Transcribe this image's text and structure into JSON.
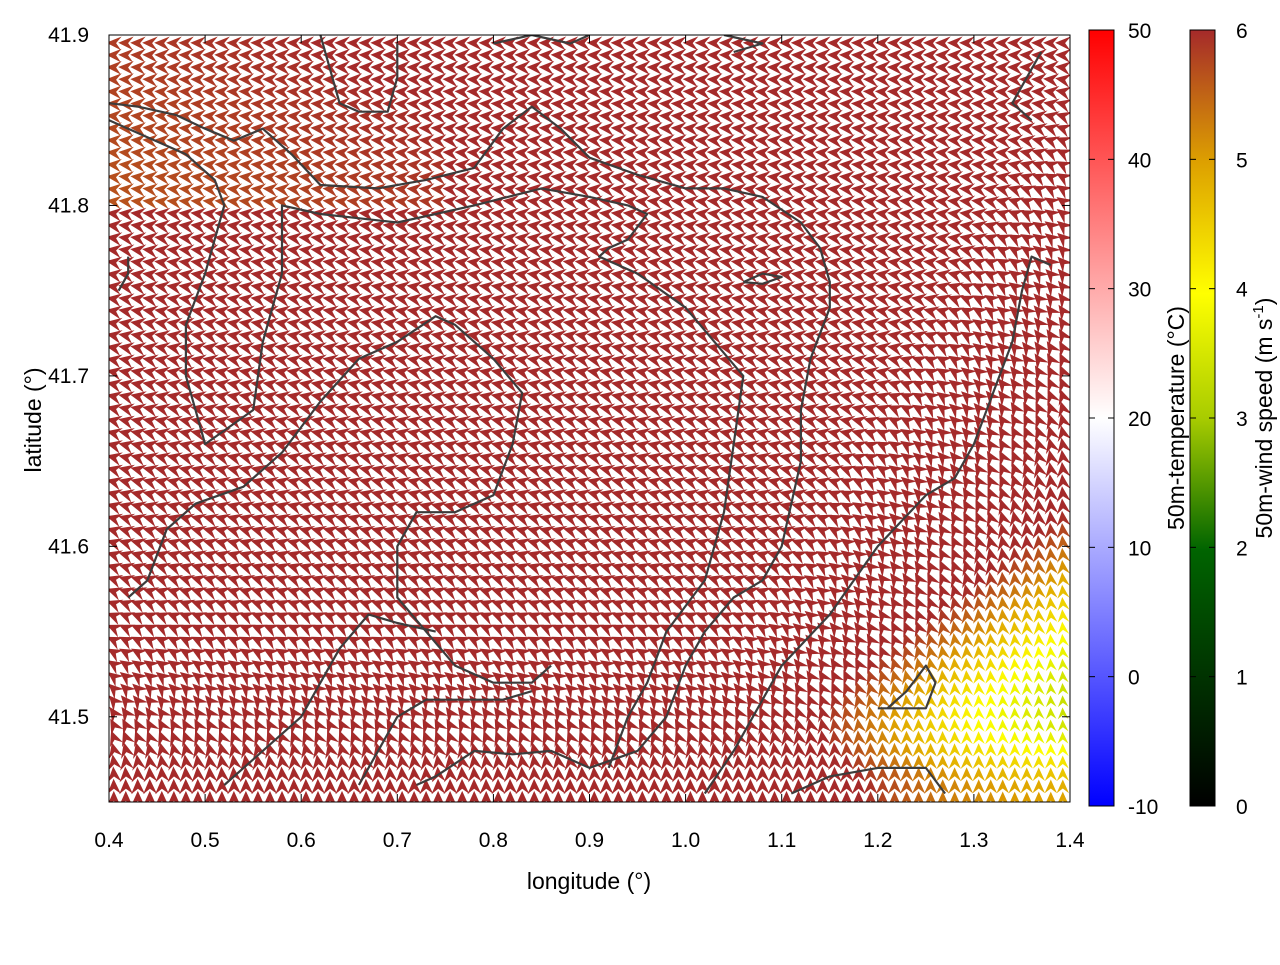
{
  "chart_data": {
    "type": "vector-field",
    "xlabel": "longitude (°)",
    "ylabel": "latitude (°)",
    "xlim": [
      0.4,
      1.4
    ],
    "ylim": [
      41.45,
      41.9
    ],
    "x_ticks": [
      "0.4",
      "0.5",
      "0.6",
      "0.7",
      "0.8",
      "0.9",
      "1.0",
      "1.1",
      "1.2",
      "1.3",
      "1.4"
    ],
    "x_tick_values": [
      0.4,
      0.5,
      0.6,
      0.7,
      0.8,
      0.9,
      1.0,
      1.1,
      1.2,
      1.3,
      1.4
    ],
    "y_ticks": [
      "41.5",
      "41.6",
      "41.7",
      "41.8",
      "41.9"
    ],
    "y_tick_values": [
      41.5,
      41.6,
      41.7,
      41.8,
      41.9
    ],
    "grid": false,
    "temperature_colorbar": {
      "label": "50m-temperature (°C)",
      "range": [
        -10,
        50
      ],
      "ticks": [
        "-10",
        "0",
        "10",
        "20",
        "30",
        "40",
        "50"
      ],
      "tick_values": [
        -10,
        0,
        10,
        20,
        30,
        40,
        50
      ],
      "colors": [
        "#0000ff",
        "#ffffff",
        "#ff0000"
      ]
    },
    "wind_colorbar": {
      "label_main": "50m-wind speed (m s",
      "label_sup": "-1",
      "label_end": ")",
      "range": [
        0,
        6
      ],
      "ticks": [
        "0",
        "1",
        "2",
        "3",
        "4",
        "5",
        "6"
      ],
      "tick_values": [
        0,
        1,
        2,
        3,
        4,
        5,
        6
      ],
      "colors": [
        "#000000",
        "#006400",
        "#a8cc00",
        "#ffff00",
        "#dda000",
        "#a52a2a"
      ]
    },
    "coastline_color": "#3c3c3c",
    "coastlines": [
      [
        [
          0.62,
          41.9
        ],
        [
          0.64,
          41.86
        ],
        [
          0.66,
          41.855
        ],
        [
          0.69,
          41.855
        ],
        [
          0.7,
          41.875
        ],
        [
          0.7,
          41.895
        ]
      ],
      [
        [
          0.4,
          41.86
        ],
        [
          0.43,
          41.858
        ],
        [
          0.47,
          41.853
        ],
        [
          0.5,
          41.845
        ],
        [
          0.53,
          41.838
        ],
        [
          0.56,
          41.845
        ],
        [
          0.59,
          41.83
        ],
        [
          0.62,
          41.812
        ],
        [
          0.68,
          41.81
        ],
        [
          0.73,
          41.815
        ],
        [
          0.78,
          41.822
        ],
        [
          0.81,
          41.845
        ],
        [
          0.84,
          41.858
        ],
        [
          0.87,
          41.845
        ],
        [
          0.9,
          41.828
        ],
        [
          0.95,
          41.818
        ],
        [
          1.0,
          41.81
        ],
        [
          1.04,
          41.81
        ],
        [
          1.08,
          41.805
        ],
        [
          1.12,
          41.79
        ],
        [
          1.14,
          41.775
        ],
        [
          1.15,
          41.755
        ],
        [
          1.15,
          41.74
        ],
        [
          1.13,
          41.71
        ],
        [
          1.12,
          41.68
        ],
        [
          1.12,
          41.65
        ],
        [
          1.1,
          41.6
        ],
        [
          1.08,
          41.58
        ],
        [
          1.05,
          41.57
        ],
        [
          1.02,
          41.55
        ],
        [
          1.0,
          41.53
        ],
        [
          0.98,
          41.5
        ],
        [
          0.95,
          41.48
        ],
        [
          0.9,
          41.47
        ],
        [
          0.86,
          41.48
        ],
        [
          0.82,
          41.478
        ],
        [
          0.78,
          41.48
        ],
        [
          0.74,
          41.465
        ],
        [
          0.72,
          41.46
        ]
      ],
      [
        [
          0.4,
          41.85
        ],
        [
          0.44,
          41.84
        ],
        [
          0.48,
          41.83
        ],
        [
          0.51,
          41.815
        ],
        [
          0.52,
          41.8
        ],
        [
          0.5,
          41.76
        ],
        [
          0.48,
          41.73
        ],
        [
          0.48,
          41.7
        ],
        [
          0.5,
          41.66
        ],
        [
          0.55,
          41.68
        ],
        [
          0.56,
          41.72
        ],
        [
          0.58,
          41.76
        ],
        [
          0.58,
          41.8
        ],
        [
          0.62,
          41.795
        ],
        [
          0.7,
          41.79
        ],
        [
          0.78,
          41.8
        ],
        [
          0.85,
          41.81
        ],
        [
          0.9,
          41.805
        ],
        [
          0.94,
          41.8
        ],
        [
          0.96,
          41.795
        ],
        [
          0.94,
          41.78
        ],
        [
          0.92,
          41.775
        ],
        [
          0.91,
          41.77
        ],
        [
          0.95,
          41.76
        ],
        [
          1.0,
          41.74
        ],
        [
          1.03,
          41.72
        ],
        [
          1.06,
          41.7
        ],
        [
          1.05,
          41.66
        ],
        [
          1.04,
          41.62
        ],
        [
          1.02,
          41.58
        ],
        [
          0.98,
          41.55
        ],
        [
          0.96,
          41.52
        ],
        [
          0.94,
          41.5
        ],
        [
          0.92,
          41.47
        ]
      ],
      [
        [
          0.42,
          41.57
        ],
        [
          0.44,
          41.58
        ],
        [
          0.46,
          41.61
        ],
        [
          0.49,
          41.625
        ],
        [
          0.54,
          41.635
        ],
        [
          0.58,
          41.655
        ],
        [
          0.62,
          41.685
        ],
        [
          0.66,
          41.71
        ],
        [
          0.7,
          41.72
        ],
        [
          0.74,
          41.735
        ],
        [
          0.76,
          41.73
        ],
        [
          0.78,
          41.72
        ],
        [
          0.8,
          41.71
        ],
        [
          0.83,
          41.69
        ],
        [
          0.82,
          41.66
        ],
        [
          0.8,
          41.63
        ],
        [
          0.76,
          41.62
        ],
        [
          0.72,
          41.62
        ],
        [
          0.7,
          41.6
        ],
        [
          0.7,
          41.57
        ],
        [
          0.73,
          41.55
        ],
        [
          0.76,
          41.53
        ],
        [
          0.8,
          41.52
        ],
        [
          0.84,
          41.52
        ],
        [
          0.86,
          41.53
        ]
      ],
      [
        [
          0.52,
          41.46
        ],
        [
          0.55,
          41.475
        ],
        [
          0.58,
          41.49
        ],
        [
          0.6,
          41.5
        ],
        [
          0.62,
          41.52
        ],
        [
          0.64,
          41.54
        ],
        [
          0.67,
          41.56
        ],
        [
          0.7,
          41.555
        ],
        [
          0.74,
          41.55
        ]
      ],
      [
        [
          0.66,
          41.46
        ],
        [
          0.68,
          41.48
        ],
        [
          0.7,
          41.5
        ],
        [
          0.73,
          41.51
        ],
        [
          0.77,
          41.51
        ],
        [
          0.81,
          41.51
        ],
        [
          0.84,
          41.515
        ]
      ],
      [
        [
          1.02,
          41.455
        ],
        [
          1.05,
          41.48
        ],
        [
          1.1,
          41.53
        ],
        [
          1.15,
          41.56
        ],
        [
          1.2,
          41.6
        ],
        [
          1.25,
          41.63
        ],
        [
          1.28,
          41.64
        ],
        [
          1.3,
          41.66
        ],
        [
          1.32,
          41.69
        ],
        [
          1.34,
          41.72
        ],
        [
          1.35,
          41.75
        ],
        [
          1.36,
          41.77
        ],
        [
          1.38,
          41.765
        ]
      ],
      [
        [
          1.11,
          41.455
        ],
        [
          1.15,
          41.465
        ],
        [
          1.2,
          41.47
        ],
        [
          1.25,
          41.47
        ],
        [
          1.27,
          41.455
        ]
      ],
      [
        [
          1.2,
          41.505
        ],
        [
          1.22,
          41.505
        ],
        [
          1.25,
          41.505
        ],
        [
          1.26,
          41.52
        ],
        [
          1.25,
          41.53
        ],
        [
          1.23,
          41.515
        ],
        [
          1.21,
          41.505
        ]
      ],
      [
        [
          0.8,
          41.895
        ],
        [
          0.84,
          41.9
        ],
        [
          0.88,
          41.895
        ],
        [
          0.9,
          41.9
        ]
      ],
      [
        [
          1.05,
          41.89
        ],
        [
          1.08,
          41.895
        ],
        [
          1.04,
          41.9
        ]
      ],
      [
        [
          1.36,
          41.85
        ],
        [
          1.34,
          41.86
        ],
        [
          1.35,
          41.87
        ],
        [
          1.37,
          41.89
        ]
      ],
      [
        [
          1.06,
          41.755
        ],
        [
          1.08,
          41.76
        ],
        [
          1.1,
          41.758
        ],
        [
          1.08,
          41.754
        ],
        [
          1.06,
          41.755
        ]
      ],
      [
        [
          0.41,
          41.75
        ],
        [
          0.42,
          41.76
        ],
        [
          0.42,
          41.77
        ]
      ]
    ]
  }
}
